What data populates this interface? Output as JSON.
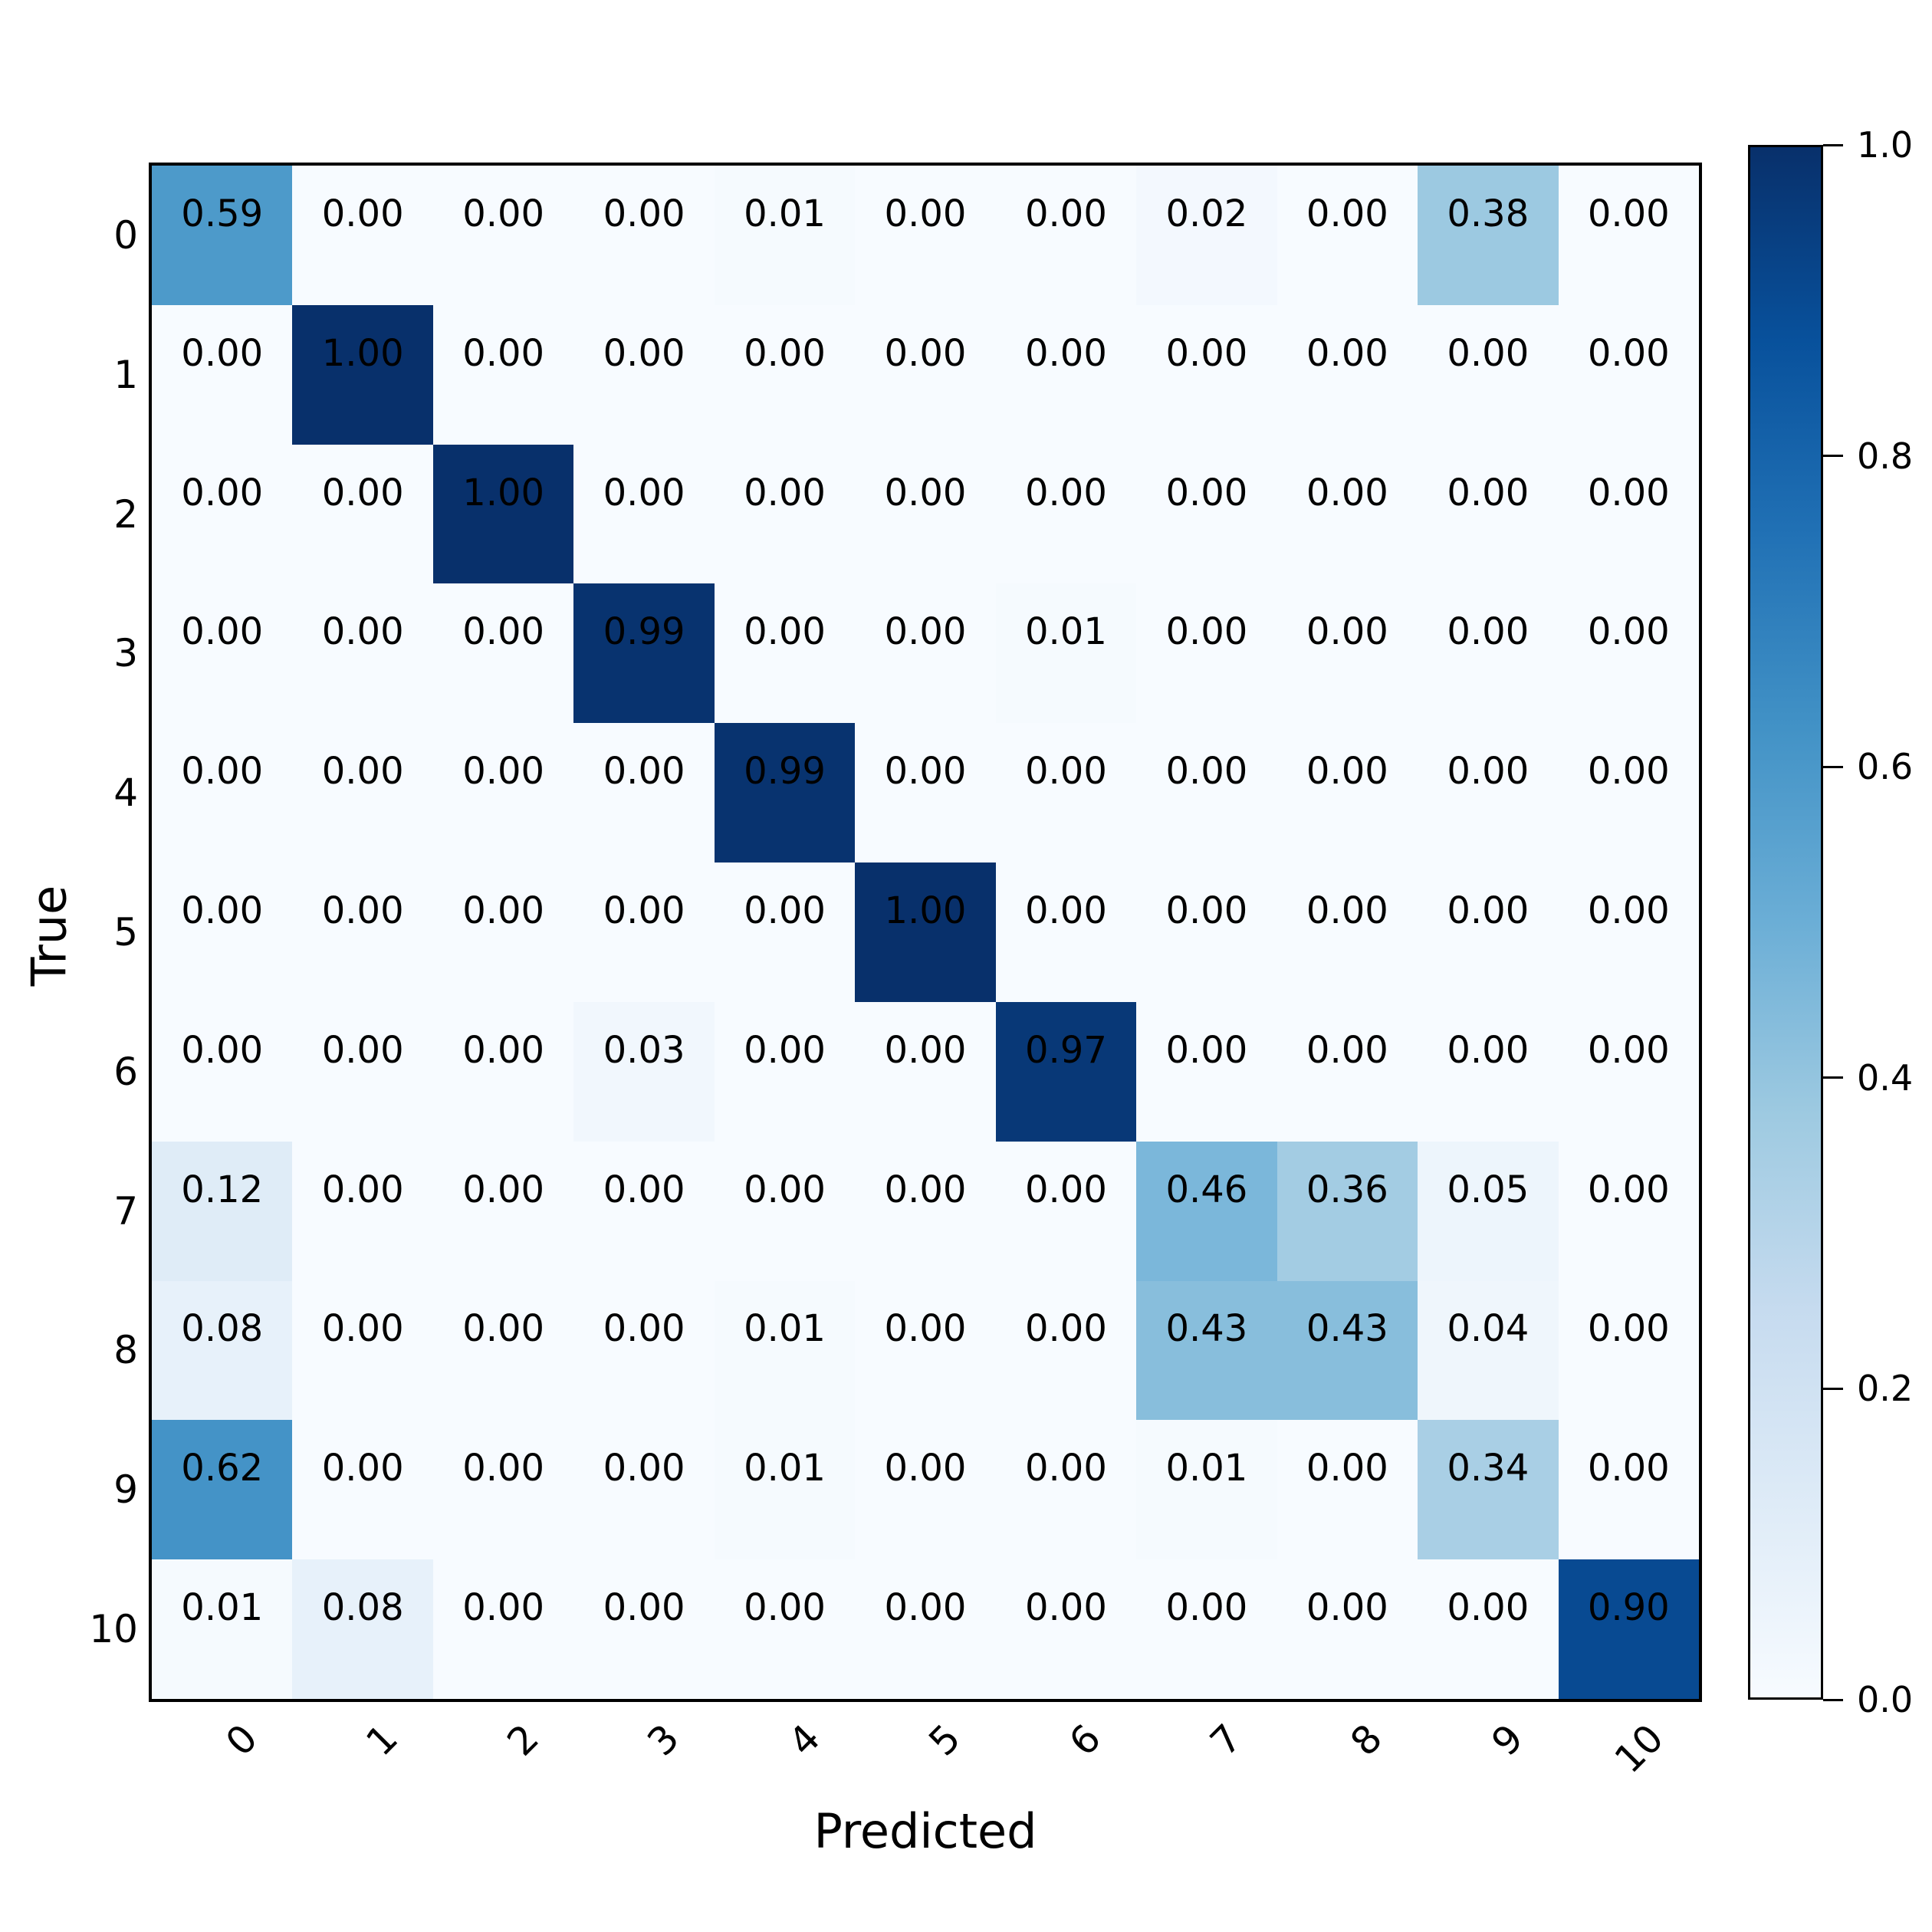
{
  "figure": {
    "background_color": "#ffffff",
    "axes_border_color": "#000000",
    "text_color": "#000000"
  },
  "chart_data": {
    "type": "heatmap",
    "subtype": "confusion-matrix",
    "title": "",
    "xlabel": "Predicted",
    "ylabel": "True",
    "x_labels": [
      "0",
      "1",
      "2",
      "3",
      "4",
      "5",
      "6",
      "7",
      "8",
      "9",
      "10"
    ],
    "y_labels": [
      "0",
      "1",
      "2",
      "3",
      "4",
      "5",
      "6",
      "7",
      "8",
      "9",
      "10"
    ],
    "values": [
      [
        0.59,
        0.0,
        0.0,
        0.0,
        0.01,
        0.0,
        0.0,
        0.02,
        0.0,
        0.38,
        0.0
      ],
      [
        0.0,
        1.0,
        0.0,
        0.0,
        0.0,
        0.0,
        0.0,
        0.0,
        0.0,
        0.0,
        0.0
      ],
      [
        0.0,
        0.0,
        1.0,
        0.0,
        0.0,
        0.0,
        0.0,
        0.0,
        0.0,
        0.0,
        0.0
      ],
      [
        0.0,
        0.0,
        0.0,
        0.99,
        0.0,
        0.0,
        0.01,
        0.0,
        0.0,
        0.0,
        0.0
      ],
      [
        0.0,
        0.0,
        0.0,
        0.0,
        0.99,
        0.0,
        0.0,
        0.0,
        0.0,
        0.0,
        0.0
      ],
      [
        0.0,
        0.0,
        0.0,
        0.0,
        0.0,
        1.0,
        0.0,
        0.0,
        0.0,
        0.0,
        0.0
      ],
      [
        0.0,
        0.0,
        0.0,
        0.03,
        0.0,
        0.0,
        0.97,
        0.0,
        0.0,
        0.0,
        0.0
      ],
      [
        0.12,
        0.0,
        0.0,
        0.0,
        0.0,
        0.0,
        0.0,
        0.46,
        0.36,
        0.05,
        0.0
      ],
      [
        0.08,
        0.0,
        0.0,
        0.0,
        0.01,
        0.0,
        0.0,
        0.43,
        0.43,
        0.04,
        0.0
      ],
      [
        0.62,
        0.0,
        0.0,
        0.0,
        0.01,
        0.0,
        0.0,
        0.01,
        0.0,
        0.34,
        0.0
      ],
      [
        0.01,
        0.08,
        0.0,
        0.0,
        0.0,
        0.0,
        0.0,
        0.0,
        0.0,
        0.0,
        0.9
      ]
    ],
    "value_decimals": 2,
    "vmin": 0.0,
    "vmax": 1.0,
    "grid": false,
    "cell_text_color": "#000000",
    "colormap": "Blues",
    "colormap_stops": [
      "#f7fbff",
      "#deebf7",
      "#c6dbef",
      "#9ecae1",
      "#6baed6",
      "#4292c6",
      "#2171b5",
      "#08519c",
      "#08306b"
    ],
    "colorbar": {
      "position": "right",
      "tick_labels": [
        "1.0",
        "0.8",
        "0.6",
        "0.4",
        "0.2",
        "0.0"
      ],
      "tick_values": [
        1.0,
        0.8,
        0.6,
        0.4,
        0.2,
        0.0
      ]
    }
  },
  "layout_hints": {
    "x_tick_rotation_deg": -45,
    "y_tick_rotation_deg": 0
  }
}
